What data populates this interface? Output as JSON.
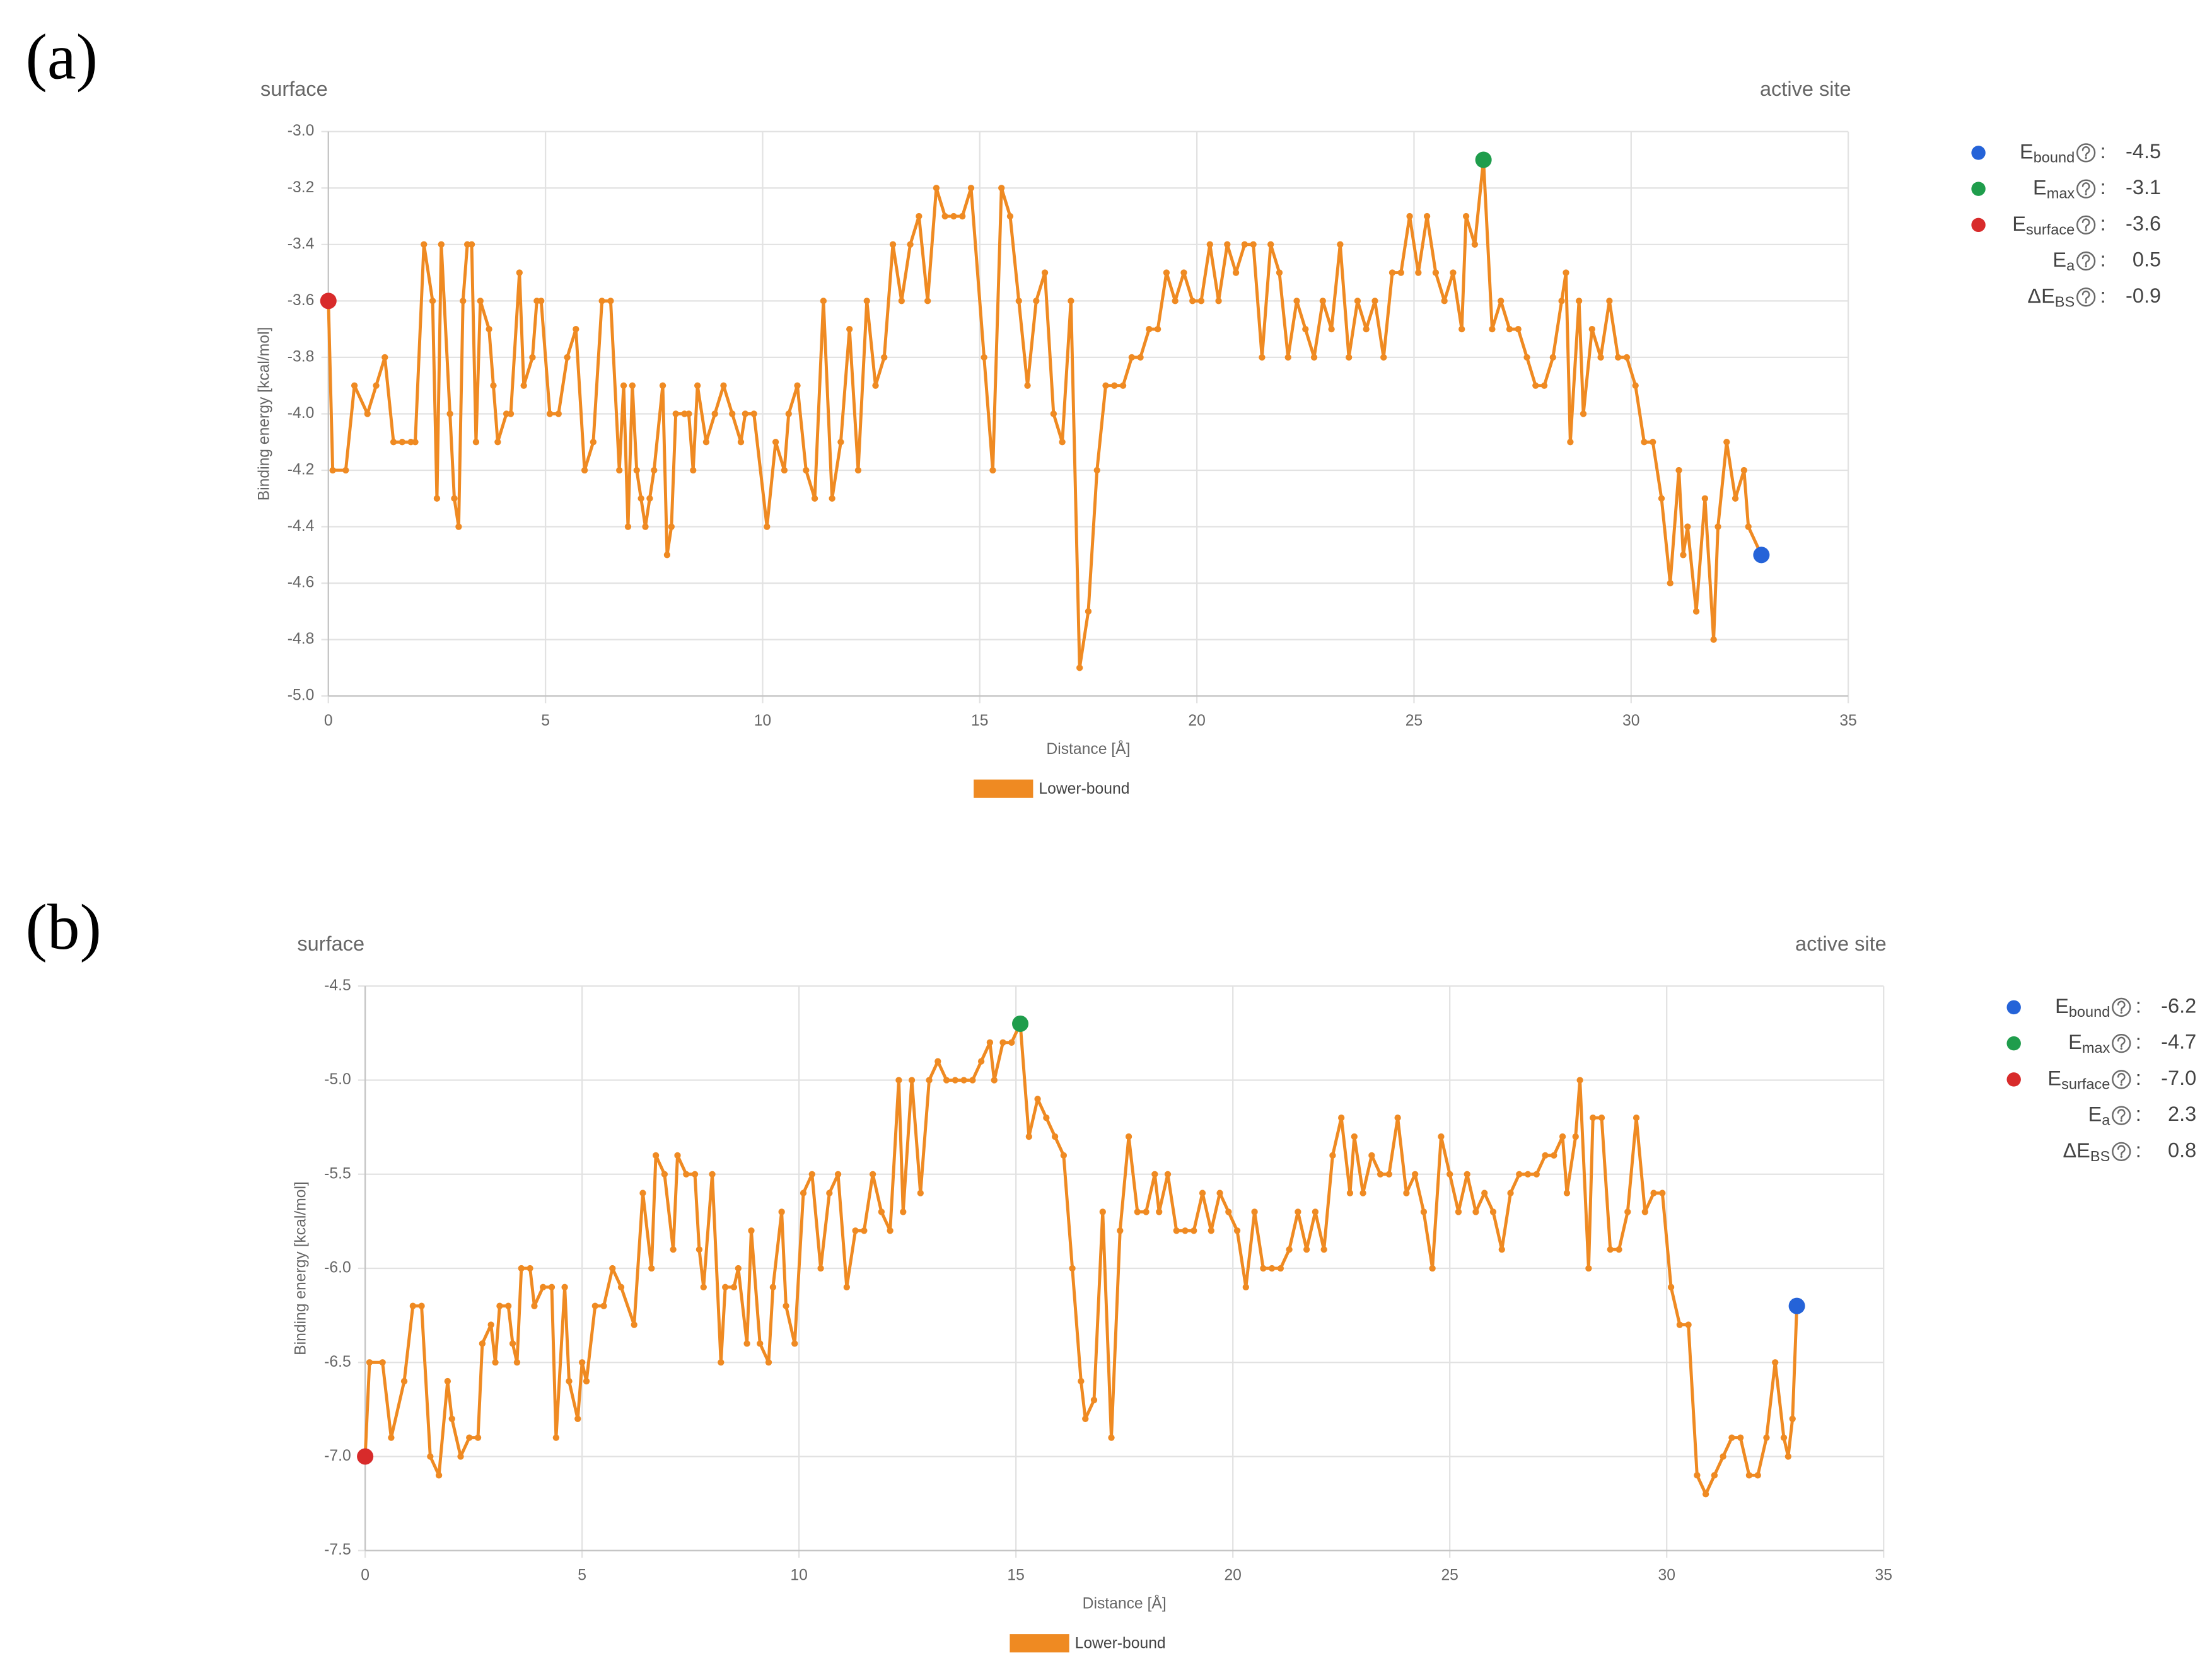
{
  "chart_data": [
    {
      "type": "line",
      "panel_label": "(a)",
      "left_note": "surface",
      "right_note": "active site",
      "xlabel": "Distance [Å]",
      "ylabel": "Binding energy [kcal/mol]",
      "xlim": [
        0,
        35
      ],
      "xticks": [
        0,
        5,
        10,
        15,
        20,
        25,
        30,
        35
      ],
      "ylim": [
        -5,
        -3
      ],
      "yticks": [
        {
          "value": -3,
          "label": "-3.0"
        },
        -3.2,
        -3.4,
        -3.6,
        -3.8,
        {
          "value": -4,
          "label": "-4.0"
        },
        -4.2,
        -4.4,
        -4.6,
        -4.8,
        {
          "value": -5,
          "label": "-5.0"
        }
      ],
      "grid": true,
      "legend_position": "bottom",
      "series": [
        {
          "name": "Lower-bound",
          "color": "#ef8a22",
          "x": [
            0,
            0.1,
            0.4,
            0.6,
            0.9,
            1.1,
            1.3,
            1.5,
            1.7,
            1.9,
            2.0,
            2.2,
            2.4,
            2.5,
            2.6,
            2.8,
            2.9,
            3.0,
            3.1,
            3.2,
            3.3,
            3.4,
            3.5,
            3.7,
            3.8,
            3.9,
            4.1,
            4.2,
            4.4,
            4.5,
            4.7,
            4.8,
            4.9,
            5.1,
            5.3,
            5.5,
            5.7,
            5.9,
            6.1,
            6.3,
            6.5,
            6.7,
            6.8,
            6.9,
            7.0,
            7.1,
            7.2,
            7.3,
            7.4,
            7.5,
            7.7,
            7.8,
            7.9,
            8.0,
            8.2,
            8.3,
            8.4,
            8.5,
            8.7,
            8.9,
            9.1,
            9.3,
            9.5,
            9.6,
            9.8,
            10.1,
            10.3,
            10.5,
            10.6,
            10.8,
            11.0,
            11.2,
            11.4,
            11.6,
            11.8,
            12.0,
            12.2,
            12.4,
            12.6,
            12.8,
            13.0,
            13.2,
            13.4,
            13.6,
            13.8,
            14.0,
            14.2,
            14.4,
            14.6,
            14.8,
            15.1,
            15.3,
            15.5,
            15.7,
            15.9,
            16.1,
            16.3,
            16.5,
            16.7,
            16.9,
            17.1,
            17.3,
            17.5,
            17.7,
            17.9,
            18.1,
            18.3,
            18.5,
            18.7,
            18.9,
            19.1,
            19.3,
            19.5,
            19.7,
            19.9,
            20.1,
            20.3,
            20.5,
            20.7,
            20.9,
            21.1,
            21.3,
            21.5,
            21.7,
            21.9,
            22.1,
            22.3,
            22.5,
            22.7,
            22.9,
            23.1,
            23.3,
            23.5,
            23.7,
            23.9,
            24.1,
            24.3,
            24.5,
            24.7,
            24.9,
            25.1,
            25.3,
            25.5,
            25.7,
            25.9,
            26.1,
            26.2,
            26.4,
            26.6,
            26.8,
            27.0,
            27.2,
            27.4,
            27.6,
            27.8,
            28.0,
            28.2,
            28.4,
            28.5,
            28.6,
            28.8,
            28.9,
            29.1,
            29.3,
            29.5,
            29.7,
            29.9,
            30.1,
            30.3,
            30.5,
            30.7,
            30.9,
            31.1,
            31.2,
            31.3,
            31.5,
            31.7,
            31.9,
            32.0,
            32.2,
            32.4,
            32.6,
            32.7,
            33.0
          ],
          "values": [
            -3.6,
            -4.2,
            -4.2,
            -3.9,
            -4.0,
            -3.9,
            -3.8,
            -4.1,
            -4.1,
            -4.1,
            -4.1,
            -3.4,
            -3.6,
            -4.3,
            -3.4,
            -4.0,
            -4.3,
            -4.4,
            -3.6,
            -3.4,
            -3.4,
            -4.1,
            -3.6,
            -3.7,
            -3.9,
            -4.1,
            -4.0,
            -4.0,
            -3.5,
            -3.9,
            -3.8,
            -3.6,
            -3.6,
            -4.0,
            -4.0,
            -3.8,
            -3.7,
            -4.2,
            -4.1,
            -3.6,
            -3.6,
            -4.2,
            -3.9,
            -4.4,
            -3.9,
            -4.2,
            -4.3,
            -4.4,
            -4.3,
            -4.2,
            -3.9,
            -4.5,
            -4.4,
            -4.0,
            -4.0,
            -4.0,
            -4.2,
            -3.9,
            -4.1,
            -4.0,
            -3.9,
            -4.0,
            -4.1,
            -4.0,
            -4.0,
            -4.4,
            -4.1,
            -4.2,
            -4.0,
            -3.9,
            -4.2,
            -4.3,
            -3.6,
            -4.3,
            -4.1,
            -3.7,
            -4.2,
            -3.6,
            -3.9,
            -3.8,
            -3.4,
            -3.6,
            -3.4,
            -3.3,
            -3.6,
            -3.2,
            -3.3,
            -3.3,
            -3.3,
            -3.2,
            -3.8,
            -4.2,
            -3.2,
            -3.3,
            -3.6,
            -3.9,
            -3.6,
            -3.5,
            -4.0,
            -4.1,
            -3.6,
            -4.9,
            -4.7,
            -4.2,
            -3.9,
            -3.9,
            -3.9,
            -3.8,
            -3.8,
            -3.7,
            -3.7,
            -3.5,
            -3.6,
            -3.5,
            -3.6,
            -3.6,
            -3.4,
            -3.6,
            -3.4,
            -3.5,
            -3.4,
            -3.4,
            -3.8,
            -3.4,
            -3.5,
            -3.8,
            -3.6,
            -3.7,
            -3.8,
            -3.6,
            -3.7,
            -3.4,
            -3.8,
            -3.6,
            -3.7,
            -3.6,
            -3.8,
            -3.5,
            -3.5,
            -3.3,
            -3.5,
            -3.3,
            -3.5,
            -3.6,
            -3.5,
            -3.7,
            -3.3,
            -3.4,
            -3.1,
            -3.7,
            -3.6,
            -3.7,
            -3.7,
            -3.8,
            -3.9,
            -3.9,
            -3.8,
            -3.6,
            -3.5,
            -4.1,
            -3.6,
            -4.0,
            -3.7,
            -3.8,
            -3.6,
            -3.8,
            -3.8,
            -3.9,
            -4.1,
            -4.1,
            -4.3,
            -4.6,
            -4.2,
            -4.5,
            -4.4,
            -4.7,
            -4.3,
            -4.8,
            -4.4,
            -4.1,
            -4.3,
            -4.2,
            -4.4,
            -4.5
          ]
        }
      ],
      "separator": ":",
      "stats": [
        {
          "symbol": "E",
          "subscript": "bound",
          "color": "#2563d8",
          "x": 33.0,
          "value": -4.5
        },
        {
          "symbol": "E",
          "subscript": "max",
          "color": "#1f9d4c",
          "x": 26.6,
          "value": -3.1
        },
        {
          "symbol": "E",
          "subscript": "surface",
          "color": "#d82b2b",
          "x": 0,
          "value": -3.6
        },
        {
          "symbol": "E",
          "subscript": "a",
          "value": 0.5
        },
        {
          "symbol": "ΔE",
          "subscript": "BS",
          "value": -0.9
        }
      ]
    },
    {
      "type": "line",
      "panel_label": "(b)",
      "left_note": "surface",
      "right_note": "active site",
      "xlabel": "Distance [Å]",
      "ylabel": "Binding energy [kcal/mol]",
      "xlim": [
        0,
        35
      ],
      "xticks": [
        0,
        5,
        10,
        15,
        20,
        25,
        30,
        35
      ],
      "ylim": [
        -7.5,
        -4.5
      ],
      "yticks": [
        -4.5,
        {
          "value": -5,
          "label": "-5.0"
        },
        -5.5,
        {
          "value": -6,
          "label": "-6.0"
        },
        -6.5,
        {
          "value": -7,
          "label": "-7.0"
        },
        -7.5
      ],
      "grid": true,
      "legend_position": "bottom",
      "series": [
        {
          "name": "Lower-bound",
          "color": "#ef8a22",
          "x": [
            0,
            0.1,
            0.4,
            0.6,
            0.9,
            1.1,
            1.3,
            1.5,
            1.7,
            1.9,
            2.0,
            2.2,
            2.4,
            2.6,
            2.7,
            2.9,
            3.0,
            3.1,
            3.3,
            3.4,
            3.5,
            3.6,
            3.8,
            3.9,
            4.1,
            4.3,
            4.4,
            4.6,
            4.7,
            4.9,
            5.0,
            5.1,
            5.3,
            5.5,
            5.7,
            5.9,
            6.2,
            6.4,
            6.6,
            6.7,
            6.9,
            7.1,
            7.2,
            7.4,
            7.6,
            7.7,
            7.8,
            8.0,
            8.2,
            8.3,
            8.5,
            8.6,
            8.8,
            8.9,
            9.1,
            9.3,
            9.4,
            9.6,
            9.7,
            9.9,
            10.1,
            10.3,
            10.5,
            10.7,
            10.9,
            11.1,
            11.3,
            11.5,
            11.7,
            11.9,
            12.1,
            12.3,
            12.4,
            12.6,
            12.8,
            13.0,
            13.2,
            13.4,
            13.6,
            13.8,
            14.0,
            14.2,
            14.4,
            14.5,
            14.7,
            14.9,
            15.1,
            15.3,
            15.5,
            15.7,
            15.9,
            16.1,
            16.3,
            16.5,
            16.6,
            16.8,
            17.0,
            17.2,
            17.4,
            17.6,
            17.8,
            18.0,
            18.2,
            18.3,
            18.5,
            18.7,
            18.9,
            19.1,
            19.3,
            19.5,
            19.7,
            19.9,
            20.1,
            20.3,
            20.5,
            20.7,
            20.9,
            21.1,
            21.3,
            21.5,
            21.7,
            21.9,
            22.1,
            22.3,
            22.5,
            22.7,
            22.8,
            23.0,
            23.2,
            23.4,
            23.6,
            23.8,
            24.0,
            24.2,
            24.4,
            24.6,
            24.8,
            25.0,
            25.2,
            25.4,
            25.6,
            25.8,
            26.0,
            26.2,
            26.4,
            26.6,
            26.8,
            27.0,
            27.2,
            27.4,
            27.6,
            27.7,
            27.9,
            28.0,
            28.2,
            28.3,
            28.5,
            28.7,
            28.9,
            29.1,
            29.3,
            29.5,
            29.7,
            29.9,
            30.1,
            30.3,
            30.5,
            30.7,
            30.9,
            31.1,
            31.3,
            31.5,
            31.7,
            31.9,
            32.1,
            32.3,
            32.5,
            32.7,
            32.8,
            32.9,
            33.0
          ],
          "values": [
            -7.0,
            -6.5,
            -6.5,
            -6.9,
            -6.6,
            -6.2,
            -6.2,
            -7.0,
            -7.1,
            -6.6,
            -6.8,
            -7.0,
            -6.9,
            -6.9,
            -6.4,
            -6.3,
            -6.5,
            -6.2,
            -6.2,
            -6.4,
            -6.5,
            -6.0,
            -6.0,
            -6.2,
            -6.1,
            -6.1,
            -6.9,
            -6.1,
            -6.6,
            -6.8,
            -6.5,
            -6.6,
            -6.2,
            -6.2,
            -6.0,
            -6.1,
            -6.3,
            -5.6,
            -6.0,
            -5.4,
            -5.5,
            -5.9,
            -5.4,
            -5.5,
            -5.5,
            -5.9,
            -6.1,
            -5.5,
            -6.5,
            -6.1,
            -6.1,
            -6.0,
            -6.4,
            -5.8,
            -6.4,
            -6.5,
            -6.1,
            -5.7,
            -6.2,
            -6.4,
            -5.6,
            -5.5,
            -6.0,
            -5.6,
            -5.5,
            -6.1,
            -5.8,
            -5.8,
            -5.5,
            -5.7,
            -5.8,
            -5.0,
            -5.7,
            -5.0,
            -5.6,
            -5.0,
            -4.9,
            -5.0,
            -5.0,
            -5.0,
            -5.0,
            -4.9,
            -4.8,
            -5.0,
            -4.8,
            -4.8,
            -4.7,
            -5.3,
            -5.1,
            -5.2,
            -5.3,
            -5.4,
            -6.0,
            -6.6,
            -6.8,
            -6.7,
            -5.7,
            -6.9,
            -5.8,
            -5.3,
            -5.7,
            -5.7,
            -5.5,
            -5.7,
            -5.5,
            -5.8,
            -5.8,
            -5.8,
            -5.6,
            -5.8,
            -5.6,
            -5.7,
            -5.8,
            -6.1,
            -5.7,
            -6.0,
            -6.0,
            -6.0,
            -5.9,
            -5.7,
            -5.9,
            -5.7,
            -5.9,
            -5.4,
            -5.2,
            -5.6,
            -5.3,
            -5.6,
            -5.4,
            -5.5,
            -5.5,
            -5.2,
            -5.6,
            -5.5,
            -5.7,
            -6.0,
            -5.3,
            -5.5,
            -5.7,
            -5.5,
            -5.7,
            -5.6,
            -5.7,
            -5.9,
            -5.6,
            -5.5,
            -5.5,
            -5.5,
            -5.4,
            -5.4,
            -5.3,
            -5.6,
            -5.3,
            -5.0,
            -6.0,
            -5.2,
            -5.2,
            -5.9,
            -5.9,
            -5.7,
            -5.2,
            -5.7,
            -5.6,
            -5.6,
            -6.1,
            -6.3,
            -6.3,
            -7.1,
            -7.2,
            -7.1,
            -7.0,
            -6.9,
            -6.9,
            -7.1,
            -7.1,
            -6.9,
            -6.5,
            -6.9,
            -7.0,
            -6.8,
            -6.2
          ]
        }
      ],
      "separator": ":",
      "stats": [
        {
          "symbol": "E",
          "subscript": "bound",
          "color": "#2563d8",
          "x": 33.0,
          "value": -6.2
        },
        {
          "symbol": "E",
          "subscript": "max",
          "color": "#1f9d4c",
          "x": 15.1,
          "value": -4.7
        },
        {
          "symbol": "E",
          "subscript": "surface",
          "color": "#d82b2b",
          "x": 0,
          "value": -7,
          "value_label": "-7.0"
        },
        {
          "symbol": "E",
          "subscript": "a",
          "value": 2.3
        },
        {
          "symbol": "ΔE",
          "subscript": "BS",
          "value": 0.8
        }
      ]
    }
  ]
}
